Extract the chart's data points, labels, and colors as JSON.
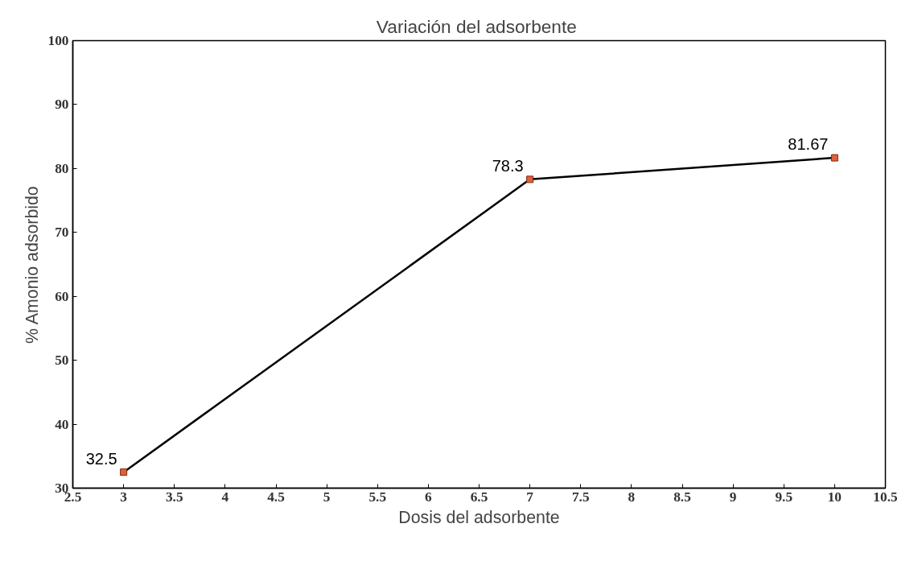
{
  "chart_data": {
    "type": "line",
    "title": "Variación  del adsorbente",
    "xlabel": "Dosis del adsorbente",
    "ylabel": "% Amonio adsorbido",
    "x": [
      3,
      7,
      10
    ],
    "series": [
      {
        "color": "#000000",
        "colors": [
          "#e0603a",
          "#e0603a",
          "#e0603a"
        ],
        "values": [
          32.5,
          78.3,
          81.67
        ]
      }
    ],
    "xlim": [
      2.5,
      10.5
    ],
    "xticks": [
      2.5,
      3,
      3.5,
      4,
      4.5,
      5,
      5.5,
      6,
      6.5,
      7,
      7.5,
      8,
      8.5,
      9,
      9.5,
      10,
      10.5
    ],
    "ylim": [
      30,
      100
    ],
    "yticks": [
      30,
      40,
      50,
      60,
      70,
      80,
      90,
      100
    ],
    "grid": false,
    "marker": "square",
    "line_style": "solid",
    "data_labels": true
  }
}
